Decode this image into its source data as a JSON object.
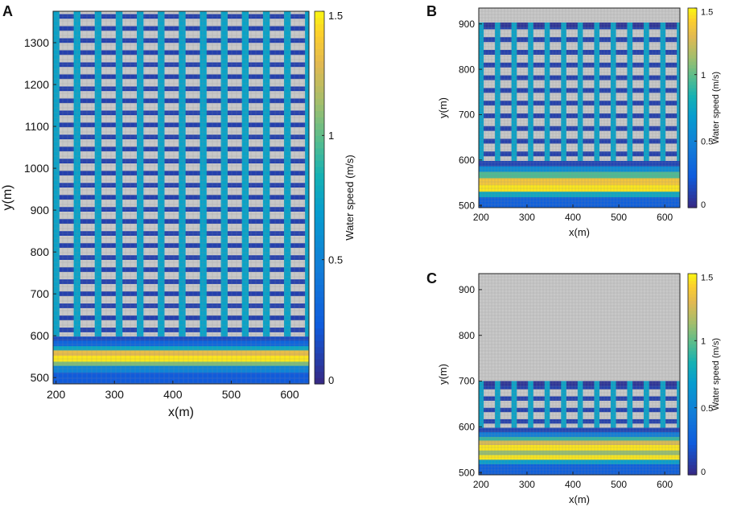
{
  "figure": {
    "colors": {
      "mesh_gray": "#c8c8c8",
      "mesh_line": "#8e8e8e",
      "axis": "#222222"
    }
  },
  "chart_data": [
    {
      "panel": "A",
      "type": "heatmap",
      "xlabel": "x(m)",
      "ylabel": "y(m)",
      "xlim": [
        195,
        633
      ],
      "ylim": [
        485,
        1375
      ],
      "xticks": [
        200,
        300,
        400,
        500,
        600
      ],
      "yticks": [
        500,
        600,
        700,
        800,
        900,
        1000,
        1100,
        1200,
        1300
      ],
      "colorbar": {
        "label": "Water speed (m/s)",
        "range": [
          0,
          1.5
        ],
        "ticks": [
          0,
          0.5,
          1,
          1.5
        ],
        "colormap": "parula"
      },
      "field": {
        "vegetation_top": 1375,
        "vegetation_bottom": 598,
        "column_spacing": 36,
        "column_speed": 0.72,
        "row_spacing": 28.8,
        "row_speed": 0.1,
        "patch_speed": null,
        "free_flow_top": 598,
        "free_flow_profile": [
          {
            "y_top": 598,
            "y_bottom": 588,
            "speed": 0.15
          },
          {
            "y_top": 588,
            "y_bottom": 575,
            "speed": 0.3
          },
          {
            "y_top": 575,
            "y_bottom": 565,
            "speed": 0.75
          },
          {
            "y_top": 565,
            "y_bottom": 552,
            "speed": 1.3
          },
          {
            "y_top": 552,
            "y_bottom": 538,
            "speed": 1.45
          },
          {
            "y_top": 538,
            "y_bottom": 528,
            "speed": 1.05
          },
          {
            "y_top": 528,
            "y_bottom": 512,
            "speed": 0.5
          },
          {
            "y_top": 512,
            "y_bottom": 485,
            "speed": 0.22
          }
        ]
      }
    },
    {
      "panel": "B",
      "type": "heatmap",
      "xlabel": "x(m)",
      "ylabel": "y(m)",
      "xlim": [
        195,
        633
      ],
      "ylim": [
        495,
        935
      ],
      "xticks": [
        200,
        300,
        400,
        500,
        600
      ],
      "yticks": [
        500,
        600,
        700,
        800,
        900
      ],
      "colorbar": {
        "label": "Water speed (m/s)",
        "range": [
          0,
          1.5
        ],
        "ticks": [
          0,
          0.5,
          1,
          1.5
        ],
        "colormap": "parula"
      },
      "field": {
        "gray_above": 903,
        "vegetation_top": 903,
        "vegetation_bottom": 598,
        "column_spacing": 36,
        "column_speed": 0.72,
        "row_spacing": 28,
        "row_speed": 0.1,
        "free_flow_top": 598,
        "free_flow_profile": [
          {
            "y_top": 598,
            "y_bottom": 586,
            "speed": 0.12
          },
          {
            "y_top": 586,
            "y_bottom": 574,
            "speed": 0.55
          },
          {
            "y_top": 574,
            "y_bottom": 560,
            "speed": 0.95
          },
          {
            "y_top": 560,
            "y_bottom": 545,
            "speed": 1.35
          },
          {
            "y_top": 545,
            "y_bottom": 530,
            "speed": 1.45
          },
          {
            "y_top": 530,
            "y_bottom": 518,
            "speed": 0.75
          },
          {
            "y_top": 518,
            "y_bottom": 495,
            "speed": 0.25
          }
        ]
      }
    },
    {
      "panel": "C",
      "type": "heatmap",
      "xlabel": "x(m)",
      "ylabel": "y(m)",
      "xlim": [
        195,
        633
      ],
      "ylim": [
        495,
        935
      ],
      "xticks": [
        200,
        300,
        400,
        500,
        600
      ],
      "yticks": [
        500,
        600,
        700,
        800,
        900
      ],
      "colorbar": {
        "label": "Water speed (m/s)",
        "range": [
          0,
          1.5
        ],
        "ticks": [
          0,
          0.5,
          1,
          1.5
        ],
        "colormap": "parula"
      },
      "field": {
        "gray_above": 700,
        "vegetation_top": 700,
        "vegetation_bottom": 598,
        "column_spacing": 36,
        "column_speed": 0.72,
        "row_spacing": 25,
        "row_speed": 0.1,
        "free_flow_top": 598,
        "free_flow_profile": [
          {
            "y_top": 598,
            "y_bottom": 588,
            "speed": 0.12
          },
          {
            "y_top": 588,
            "y_bottom": 578,
            "speed": 0.45
          },
          {
            "y_top": 578,
            "y_bottom": 570,
            "speed": 0.9
          },
          {
            "y_top": 570,
            "y_bottom": 560,
            "speed": 1.25
          },
          {
            "y_top": 560,
            "y_bottom": 548,
            "speed": 1.45
          },
          {
            "y_top": 548,
            "y_bottom": 538,
            "speed": 1.1
          },
          {
            "y_top": 538,
            "y_bottom": 528,
            "speed": 1.45
          },
          {
            "y_top": 528,
            "y_bottom": 518,
            "speed": 0.7
          },
          {
            "y_top": 518,
            "y_bottom": 495,
            "speed": 0.25
          }
        ]
      }
    }
  ]
}
